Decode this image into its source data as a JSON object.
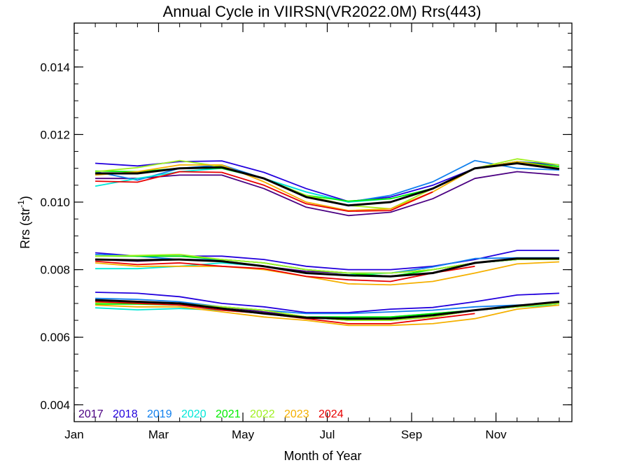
{
  "chart_data": {
    "type": "line",
    "title": "Annual Cycle in VIIRSN(VR2022.0M) Rrs(443)",
    "xlabel": "Month of Year",
    "ylabel_main": "Rrs (str",
    "ylabel_sup": "-1",
    "ylabel_close": ")",
    "xlim": [
      1,
      12.8
    ],
    "ylim": [
      0.0035,
      0.0153
    ],
    "x_ticks": [
      1,
      3,
      5,
      7,
      9,
      11
    ],
    "x_tick_labels": [
      "Jan",
      "Mar",
      "May",
      "Jul",
      "Sep",
      "Nov"
    ],
    "y_ticks": [
      0.004,
      0.006,
      0.008,
      0.01,
      0.012,
      0.014
    ],
    "y_tick_labels": [
      "0.004",
      "0.006",
      "0.008",
      "0.010",
      "0.012",
      "0.014"
    ],
    "y_minor_step": 0.0005,
    "x_minor_step": 0.5,
    "legend_position": "bottom-left",
    "x": [
      1.5,
      2.5,
      3.5,
      4.5,
      5.5,
      6.5,
      7.5,
      8.5,
      9.5,
      10.5,
      11.5,
      12.5
    ],
    "series": [
      {
        "name": "2017",
        "color": "#4b0082",
        "groups": [
          [
            0.0107,
            0.0107,
            0.0108,
            0.0108,
            0.0104,
            0.00985,
            0.0096,
            0.0097,
            0.0101,
            0.0107,
            0.0109,
            0.0108
          ],
          [
            0.0083,
            0.00825,
            0.0083,
            0.00825,
            0.0081,
            0.00795,
            0.0079,
            0.0079,
            0.008,
            0.0082,
            0.0083,
            0.0083
          ],
          [
            0.0071,
            0.00705,
            0.007,
            0.0069,
            0.00675,
            0.0066,
            0.0065,
            0.0065,
            0.0066,
            0.0068,
            0.0069,
            0.007
          ]
        ]
      },
      {
        "name": "2018",
        "color": "#2200dd",
        "groups": [
          [
            0.01115,
            0.01107,
            0.0112,
            0.01122,
            0.01088,
            0.0104,
            0.01002,
            0.01015,
            0.0105,
            0.011,
            0.0112,
            0.0111
          ],
          [
            0.0085,
            0.0084,
            0.0084,
            0.0084,
            0.0083,
            0.0081,
            0.008,
            0.008,
            0.0081,
            0.0083,
            0.00857,
            0.00857
          ],
          [
            0.00733,
            0.0073,
            0.0072,
            0.007,
            0.0069,
            0.00673,
            0.00673,
            0.00683,
            0.00688,
            0.00705,
            0.00725,
            0.0073
          ]
        ]
      },
      {
        "name": "2019",
        "color": "#1080ee",
        "groups": [
          [
            0.0109,
            0.01065,
            0.011,
            0.0111,
            0.0107,
            0.0103,
            0.01,
            0.0102,
            0.0106,
            0.01123,
            0.011,
            0.01095
          ],
          [
            0.00845,
            0.0084,
            0.0083,
            0.0083,
            0.0082,
            0.008,
            0.0079,
            0.0079,
            0.00808,
            0.00833,
            0.00835,
            0.00835
          ],
          [
            0.00715,
            0.00712,
            0.00705,
            0.0069,
            0.0068,
            0.0067,
            0.0067,
            0.00675,
            0.0068,
            0.0069,
            0.00695,
            0.007
          ]
        ]
      },
      {
        "name": "2020",
        "color": "#00e8d8",
        "groups": [
          [
            0.01047,
            0.0107,
            0.0109,
            0.011,
            0.0107,
            0.0103,
            0.01,
            0.0101,
            0.0104,
            0.011,
            0.0112,
            0.011
          ],
          [
            0.00803,
            0.00803,
            0.0081,
            0.0082,
            0.0081,
            0.0079,
            0.00785,
            0.0079,
            0.008,
            0.0082,
            0.0083,
            0.0083
          ],
          [
            0.00687,
            0.00681,
            0.00685,
            0.0068,
            0.0067,
            0.0066,
            0.0066,
            0.0066,
            0.0067,
            0.0068,
            0.0069,
            0.00695
          ]
        ]
      },
      {
        "name": "2021",
        "color": "#00ee00",
        "groups": [
          [
            0.01092,
            0.0109,
            0.011,
            0.011,
            0.0107,
            0.0102,
            0.01003,
            0.0101,
            0.0104,
            0.011,
            0.0112,
            0.01105
          ],
          [
            0.0084,
            0.0084,
            0.0084,
            0.0083,
            0.0082,
            0.008,
            0.0079,
            0.0078,
            0.008,
            0.0082,
            0.0083,
            0.0083
          ],
          [
            0.00698,
            0.00698,
            0.00695,
            0.0069,
            0.0068,
            0.0066,
            0.0066,
            0.0066,
            0.0067,
            0.0068,
            0.0069,
            0.007
          ]
        ]
      },
      {
        "name": "2022",
        "color": "#a0f020",
        "groups": [
          [
            0.0109,
            0.01102,
            0.01123,
            0.01105,
            0.0107,
            0.0102,
            0.0099,
            0.0098,
            0.0104,
            0.011,
            0.01128,
            0.0111
          ],
          [
            0.0084,
            0.00842,
            0.00845,
            0.0083,
            0.0082,
            0.008,
            0.0079,
            0.0079,
            0.008,
            0.0082,
            0.0083,
            0.0083
          ],
          [
            0.00702,
            0.00702,
            0.007,
            0.0069,
            0.0068,
            0.0066,
            0.0065,
            0.0065,
            0.0066,
            0.0068,
            0.0069,
            0.007
          ]
        ]
      },
      {
        "name": "2023",
        "color": "#f5b000",
        "groups": [
          [
            0.0108,
            0.0109,
            0.0111,
            0.0111,
            0.0106,
            0.01,
            0.00975,
            0.0098,
            0.0103,
            0.011,
            0.0112,
            0.011
          ],
          [
            0.0082,
            0.0081,
            0.0081,
            0.0081,
            0.008,
            0.0078,
            0.00758,
            0.00755,
            0.00765,
            0.0079,
            0.00817,
            0.00823
          ],
          [
            0.00695,
            0.0069,
            0.0069,
            0.00675,
            0.0066,
            0.0065,
            0.00635,
            0.00635,
            0.0064,
            0.00655,
            0.00683,
            0.00695
          ]
        ]
      },
      {
        "name": "2024",
        "color": "#e80000",
        "groups": [
          [
            0.01062,
            0.01059,
            0.0109,
            0.01088,
            0.0105,
            0.00995,
            0.00973,
            0.00975,
            0.0103
          ],
          [
            0.00825,
            0.00815,
            0.0082,
            0.0081,
            0.00803,
            0.0078,
            0.0077,
            0.00765,
            0.0079,
            0.0081
          ],
          [
            0.00705,
            0.007,
            0.00695,
            0.0068,
            0.0067,
            0.00655,
            0.0064,
            0.0064,
            0.00655,
            0.0067
          ]
        ]
      },
      {
        "name": "",
        "color": "#000000",
        "width": 3,
        "groups": [
          [
            0.01085,
            0.01085,
            0.011,
            0.01103,
            0.0107,
            0.01015,
            0.0099,
            0.01,
            0.0104,
            0.011,
            0.01115,
            0.01098
          ],
          [
            0.0083,
            0.00828,
            0.0083,
            0.00825,
            0.0081,
            0.0079,
            0.00783,
            0.0078,
            0.0079,
            0.0082,
            0.00833,
            0.00833
          ],
          [
            0.0071,
            0.00705,
            0.007,
            0.00685,
            0.0067,
            0.00658,
            0.00655,
            0.00655,
            0.00665,
            0.0068,
            0.00693,
            0.00705
          ]
        ]
      }
    ]
  }
}
